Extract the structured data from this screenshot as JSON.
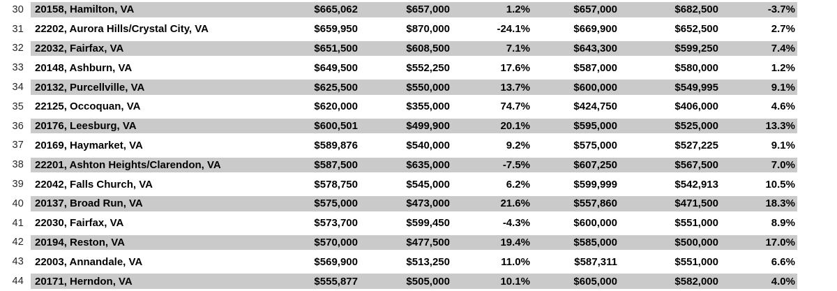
{
  "colors": {
    "band": "#cacaca",
    "text": "#000000",
    "row_number_text": "#262626",
    "background": "#ffffff"
  },
  "table": {
    "description": "Spreadsheet rows of VA zip-code home prices with percent changes",
    "rows": [
      {
        "n": "30",
        "location": "20158, Hamilton, VA",
        "v1": "$665,062",
        "v2": "$657,000",
        "p1": "1.2%",
        "v3": "$657,000",
        "v4": "$682,500",
        "p2": "-3.7%",
        "shaded": true
      },
      {
        "n": "31",
        "location": "22202, Aurora Hills/Crystal City, VA",
        "v1": "$659,950",
        "v2": "$870,000",
        "p1": "-24.1%",
        "v3": "$669,900",
        "v4": "$652,500",
        "p2": "2.7%",
        "shaded": false
      },
      {
        "n": "32",
        "location": "22032, Fairfax, VA",
        "v1": "$651,500",
        "v2": "$608,500",
        "p1": "7.1%",
        "v3": "$643,300",
        "v4": "$599,250",
        "p2": "7.4%",
        "shaded": true
      },
      {
        "n": "33",
        "location": "20148, Ashburn, VA",
        "v1": "$649,500",
        "v2": "$552,250",
        "p1": "17.6%",
        "v3": "$587,000",
        "v4": "$580,000",
        "p2": "1.2%",
        "shaded": false
      },
      {
        "n": "34",
        "location": "20132, Purcellville, VA",
        "v1": "$625,500",
        "v2": "$550,000",
        "p1": "13.7%",
        "v3": "$600,000",
        "v4": "$549,995",
        "p2": "9.1%",
        "shaded": true
      },
      {
        "n": "35",
        "location": "22125, Occoquan, VA",
        "v1": "$620,000",
        "v2": "$355,000",
        "p1": "74.7%",
        "v3": "$424,750",
        "v4": "$406,000",
        "p2": "4.6%",
        "shaded": false
      },
      {
        "n": "36",
        "location": "20176, Leesburg, VA",
        "v1": "$600,501",
        "v2": "$499,900",
        "p1": "20.1%",
        "v3": "$595,000",
        "v4": "$525,000",
        "p2": "13.3%",
        "shaded": true
      },
      {
        "n": "37",
        "location": "20169, Haymarket, VA",
        "v1": "$589,876",
        "v2": "$540,000",
        "p1": "9.2%",
        "v3": "$575,000",
        "v4": "$527,225",
        "p2": "9.1%",
        "shaded": false
      },
      {
        "n": "38",
        "location": "22201, Ashton Heights/Clarendon, VA",
        "v1": "$587,500",
        "v2": "$635,000",
        "p1": "-7.5%",
        "v3": "$607,250",
        "v4": "$567,500",
        "p2": "7.0%",
        "shaded": true
      },
      {
        "n": "39",
        "location": "22042, Falls Church, VA",
        "v1": "$578,750",
        "v2": "$545,000",
        "p1": "6.2%",
        "v3": "$599,999",
        "v4": "$542,913",
        "p2": "10.5%",
        "shaded": false
      },
      {
        "n": "40",
        "location": "20137, Broad Run, VA",
        "v1": "$575,000",
        "v2": "$473,000",
        "p1": "21.6%",
        "v3": "$557,860",
        "v4": "$471,500",
        "p2": "18.3%",
        "shaded": true
      },
      {
        "n": "41",
        "location": "22030, Fairfax, VA",
        "v1": "$573,700",
        "v2": "$599,450",
        "p1": "-4.3%",
        "v3": "$600,000",
        "v4": "$551,000",
        "p2": "8.9%",
        "shaded": false
      },
      {
        "n": "42",
        "location": "20194, Reston, VA",
        "v1": "$570,000",
        "v2": "$477,500",
        "p1": "19.4%",
        "v3": "$585,000",
        "v4": "$500,000",
        "p2": "17.0%",
        "shaded": true
      },
      {
        "n": "43",
        "location": "22003, Annandale, VA",
        "v1": "$569,900",
        "v2": "$513,250",
        "p1": "11.0%",
        "v3": "$587,311",
        "v4": "$551,000",
        "p2": "6.6%",
        "shaded": false
      },
      {
        "n": "44",
        "location": "20171, Herndon, VA",
        "v1": "$555,877",
        "v2": "$505,000",
        "p1": "10.1%",
        "v3": "$605,000",
        "v4": "$582,000",
        "p2": "4.0%",
        "shaded": true
      }
    ]
  }
}
